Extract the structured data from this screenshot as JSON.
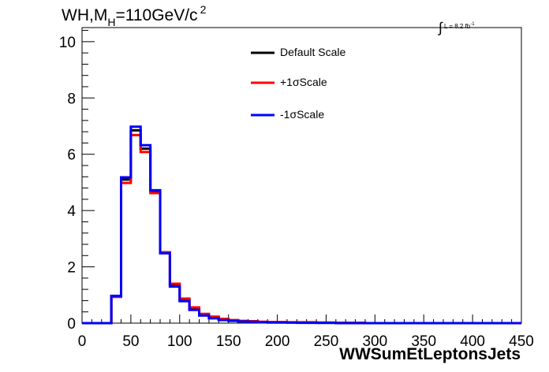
{
  "chart_data": {
    "type": "line",
    "title": {
      "main": "WH,M",
      "subscript": "H",
      "rest": "=110GeV/c",
      "superscript": "2"
    },
    "luminosity": {
      "integral_symbol": "∫",
      "text": "L = 8.2 fb",
      "superscript": "-1"
    },
    "xlabel": "WWSumEtLeptonsJets",
    "ylabel": "",
    "xlim": [
      0,
      450
    ],
    "ylim": [
      0,
      10.5
    ],
    "x_ticks": [
      0,
      50,
      100,
      150,
      200,
      250,
      300,
      350,
      400,
      450
    ],
    "y_ticks": [
      0,
      2,
      4,
      6,
      8,
      10
    ],
    "bin_edges": [
      0,
      10,
      20,
      30,
      40,
      50,
      60,
      70,
      80,
      90,
      100,
      110,
      120,
      130,
      140,
      150,
      160,
      170,
      180,
      190,
      200,
      210,
      220,
      230,
      240,
      250,
      260,
      270,
      280,
      290,
      300,
      310,
      320,
      330,
      340,
      350,
      360,
      370,
      380,
      390,
      400,
      410,
      420,
      430,
      440,
      450
    ],
    "series": [
      {
        "name": "Default Scale",
        "color": "#000000",
        "values": [
          0,
          0,
          0,
          0.95,
          5.1,
          6.85,
          6.2,
          4.7,
          2.5,
          1.35,
          0.82,
          0.5,
          0.3,
          0.2,
          0.13,
          0.09,
          0.07,
          0.06,
          0.04,
          0.03,
          0.03,
          0.02,
          0.02,
          0.02,
          0.01,
          0.01,
          0.01,
          0.01,
          0.01,
          0,
          0,
          0,
          0,
          0,
          0,
          0,
          0,
          0,
          0,
          0,
          0,
          0,
          0,
          0,
          0
        ]
      },
      {
        "name": "+1σScale",
        "color": "#ff0000",
        "values": [
          0,
          0,
          0,
          0.93,
          4.98,
          6.68,
          6.08,
          4.62,
          2.52,
          1.4,
          0.87,
          0.56,
          0.33,
          0.23,
          0.15,
          0.11,
          0.08,
          0.07,
          0.05,
          0.04,
          0.04,
          0.03,
          0.03,
          0.03,
          0.02,
          0.02,
          0.01,
          0.01,
          0.01,
          0,
          0,
          0,
          0,
          0,
          0,
          0,
          0,
          0,
          0,
          0,
          0,
          0,
          0,
          0,
          0
        ]
      },
      {
        "name": "-1σScale",
        "color": "#0000ff",
        "values": [
          0,
          0,
          0,
          0.97,
          5.18,
          6.98,
          6.32,
          4.72,
          2.48,
          1.3,
          0.78,
          0.47,
          0.27,
          0.17,
          0.11,
          0.08,
          0.06,
          0.05,
          0.03,
          0.02,
          0.02,
          0.02,
          0.01,
          0.01,
          0.01,
          0.01,
          0,
          0,
          0,
          0,
          0,
          0,
          0,
          0,
          0,
          0,
          0,
          0,
          0,
          0,
          0,
          0,
          0,
          0,
          0
        ]
      }
    ],
    "legend_position": "top-center",
    "grid": false
  }
}
